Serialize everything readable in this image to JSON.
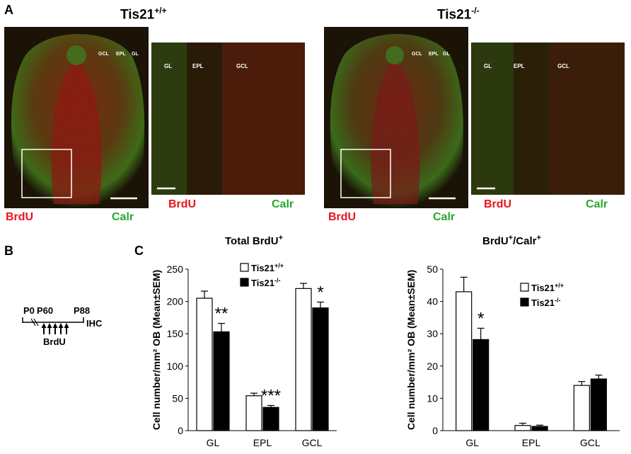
{
  "panel_labels": {
    "a": "A",
    "b": "B",
    "c": "C"
  },
  "genotypes": {
    "wt": {
      "base": "Tis21",
      "sup": "+/+"
    },
    "ko": {
      "base": "Tis21",
      "sup": "-/-"
    }
  },
  "micrographs": {
    "layer_labels": {
      "gcl": "GCL",
      "epl": "EPL",
      "gl": "GL"
    },
    "channel_red": "BrdU",
    "channel_green": "Calr"
  },
  "timeline": {
    "p0": "P0",
    "p60": "P60",
    "p88": "P88",
    "ihc": "IHC",
    "brdu": "BrdU",
    "injection_count": 5
  },
  "legend": {
    "wt": {
      "base": "Tis21",
      "sup": "+/+"
    },
    "ko": {
      "base": "Tis21",
      "sup": "-/-"
    }
  },
  "chart_data": [
    {
      "type": "bar",
      "title": "Total BrdU",
      "title_sup": "+",
      "ylabel": "Cell number/mm² OB (Mean±SEM)",
      "categories": [
        "GL",
        "EPL",
        "GCL"
      ],
      "ylim": [
        0,
        250
      ],
      "yticks": [
        0,
        50,
        100,
        150,
        200,
        250
      ],
      "series": [
        {
          "name": "Tis21+/+",
          "values": [
            205,
            54,
            220
          ],
          "errors": [
            11,
            4,
            8
          ],
          "color": "#ffffff"
        },
        {
          "name": "Tis21-/-",
          "values": [
            153,
            36,
            190
          ],
          "errors": [
            13,
            3,
            9
          ],
          "color": "#000000"
        }
      ],
      "significance": [
        "**",
        "***",
        "*"
      ],
      "legend_position": "top-center"
    },
    {
      "type": "bar",
      "title": "BrdU",
      "title_sup": "+",
      "title_suffix": "/Calr",
      "title_suffix_sup": "+",
      "ylabel": "Cell number/mm² OB (Mean±SEM)",
      "categories": [
        "GL",
        "EPL",
        "GCL"
      ],
      "ylim": [
        0,
        50
      ],
      "yticks": [
        0,
        10,
        20,
        30,
        40,
        50
      ],
      "series": [
        {
          "name": "Tis21+/+",
          "values": [
            43,
            1.6,
            14
          ],
          "errors": [
            4.5,
            0.7,
            1.2
          ],
          "color": "#ffffff"
        },
        {
          "name": "Tis21-/-",
          "values": [
            28.2,
            1.3,
            16
          ],
          "errors": [
            3.5,
            0.4,
            1.2
          ],
          "color": "#000000"
        }
      ],
      "significance": [
        "*",
        "",
        ""
      ],
      "legend_position": "top-right"
    }
  ]
}
